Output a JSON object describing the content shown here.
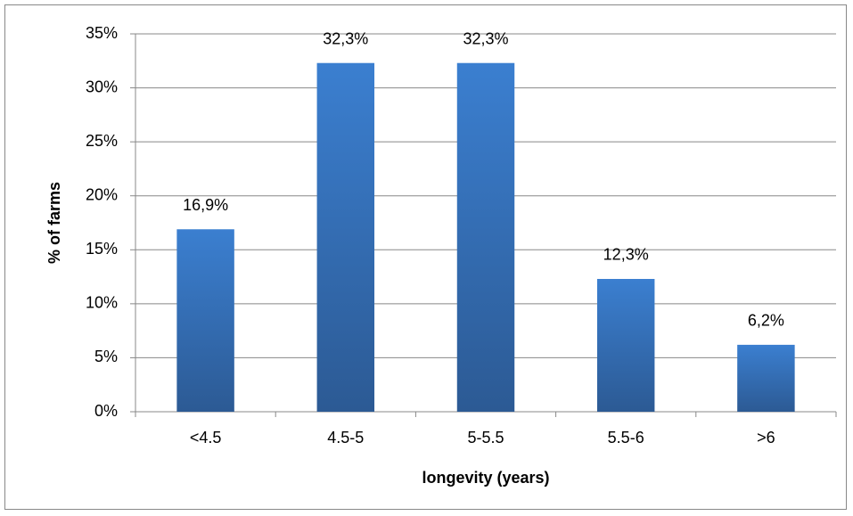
{
  "chart_data": {
    "type": "bar",
    "x_label": "longevity (years)",
    "y_label": "% of farms",
    "categories": [
      "<4.5",
      "4.5-5",
      "5-5.5",
      "5.5-6",
      ">6"
    ],
    "values": [
      16.9,
      32.3,
      32.3,
      12.3,
      6.2
    ],
    "value_labels": [
      "16,9%",
      "32,3%",
      "32,3%",
      "12,3%",
      "6,2%"
    ],
    "color": "#3b7fd0",
    "ylim": [
      0,
      35
    ],
    "yticks": [
      {
        "value": 0,
        "label": "0%"
      },
      {
        "value": 5,
        "label": "5%"
      },
      {
        "value": 10,
        "label": "10%"
      },
      {
        "value": 15,
        "label": "15%"
      },
      {
        "value": 20,
        "label": "20%"
      },
      {
        "value": 25,
        "label": "25%"
      },
      {
        "value": 30,
        "label": "30%"
      },
      {
        "value": 35,
        "label": "35%"
      }
    ],
    "grid": true
  }
}
